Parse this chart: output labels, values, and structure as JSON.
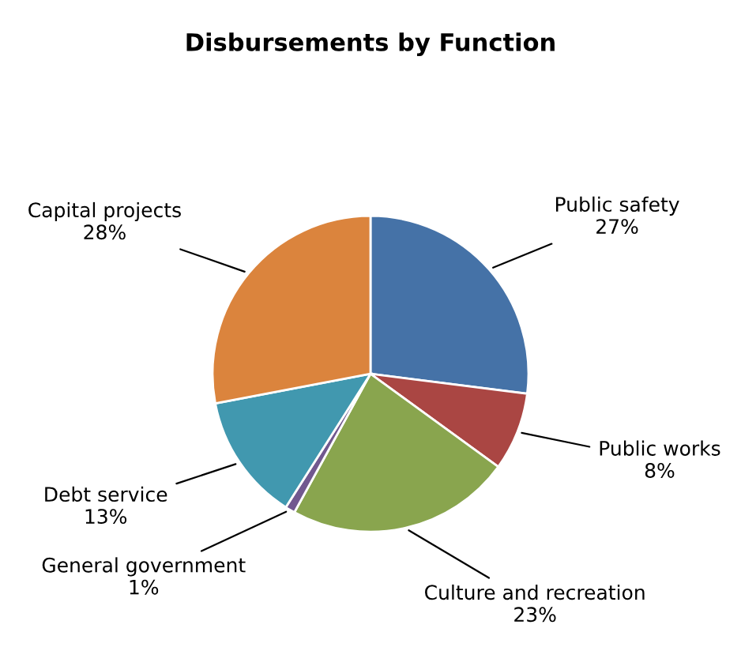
{
  "chart_data": {
    "type": "pie",
    "title": "Disbursements by Function",
    "categories": [
      "Public safety",
      "Public works",
      "Culture and recreation",
      "General government",
      "Debt service",
      "Capital projects"
    ],
    "values": [
      27,
      8,
      23,
      1,
      13,
      28
    ],
    "value_labels": [
      "27%",
      "8%",
      "23%",
      "1%",
      "13%",
      "28%"
    ],
    "colors": [
      "#4572a7",
      "#aa4643",
      "#89a54e",
      "#71588f",
      "#4198af",
      "#db843d"
    ],
    "legend": false
  }
}
